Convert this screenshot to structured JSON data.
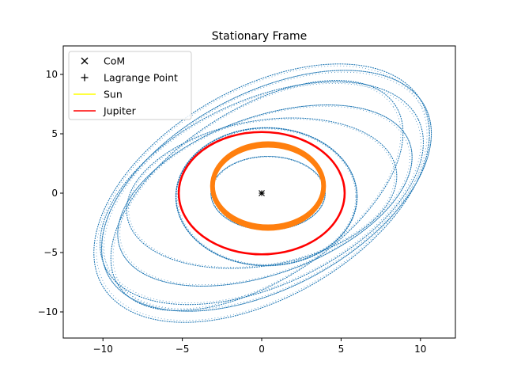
{
  "chart_data": {
    "type": "scatter",
    "title": "Stationary Frame",
    "xlabel": "",
    "ylabel": "",
    "xlim": [
      -12.5,
      12.2
    ],
    "ylim": [
      -12.2,
      12.4
    ],
    "xticks": [
      -10,
      -5,
      0,
      5,
      10
    ],
    "yticks": [
      -10,
      -5,
      0,
      5,
      10
    ],
    "xtick_labels": [
      "−10",
      "−5",
      "0",
      "5",
      "10"
    ],
    "ytick_labels": [
      "−10",
      "−5",
      "0",
      "5",
      "10"
    ],
    "grid": false,
    "legend_position": "upper-left",
    "series": [
      {
        "name": "CoM",
        "kind": "marker",
        "marker": "x",
        "color": "#000000",
        "x": [
          0.0
        ],
        "y": [
          0.0
        ]
      },
      {
        "name": "Lagrange Point",
        "kind": "marker",
        "marker": "+",
        "color": "#000000",
        "x": [
          0.0
        ],
        "y": [
          0.0
        ]
      },
      {
        "name": "Sun",
        "kind": "line",
        "color": "#ffff00",
        "x": [
          0.0
        ],
        "y": [
          0.0
        ]
      },
      {
        "name": "Jupiter",
        "kind": "orbit",
        "color": "#ff0000",
        "cx": 0.0,
        "cy": 0.0,
        "rx": [
          5.15,
          5.3
        ],
        "ry": [
          5.1,
          5.2
        ]
      },
      {
        "kind": "orbit",
        "color": "#ff7f0e",
        "cx": [
          0.3,
          0.5
        ],
        "cy": [
          0.5,
          0.7
        ],
        "rx": [
          3.4,
          3.6
        ],
        "ry": [
          3.3,
          3.7
        ]
      },
      {
        "kind": "orbits",
        "color": "#1f77b4",
        "ellipses": [
          {
            "cx": 0.4,
            "cy": 0.0,
            "rx": 3.6,
            "ry": 3.1,
            "angle": 0
          },
          {
            "cx": 0.3,
            "cy": -0.3,
            "rx": 5.7,
            "ry": 5.8,
            "angle": 0
          },
          {
            "cx": 0.0,
            "cy": 0.0,
            "rx": 11.6,
            "ry": 8.8,
            "angle": 30
          },
          {
            "cx": 0.3,
            "cy": 0.2,
            "rx": 11.3,
            "ry": 8.2,
            "angle": 28
          },
          {
            "cx": -0.3,
            "cy": -0.2,
            "rx": 10.4,
            "ry": 7.2,
            "angle": 33
          },
          {
            "cx": 0.0,
            "cy": 0.0,
            "rx": 10.9,
            "ry": 7.8,
            "angle": 25
          },
          {
            "cx": 0.2,
            "cy": -0.2,
            "rx": 9.7,
            "ry": 6.6,
            "angle": 20
          },
          {
            "cx": 0.0,
            "cy": 0.0,
            "rx": 8.6,
            "ry": 6.1,
            "angle": 10
          }
        ]
      }
    ]
  }
}
